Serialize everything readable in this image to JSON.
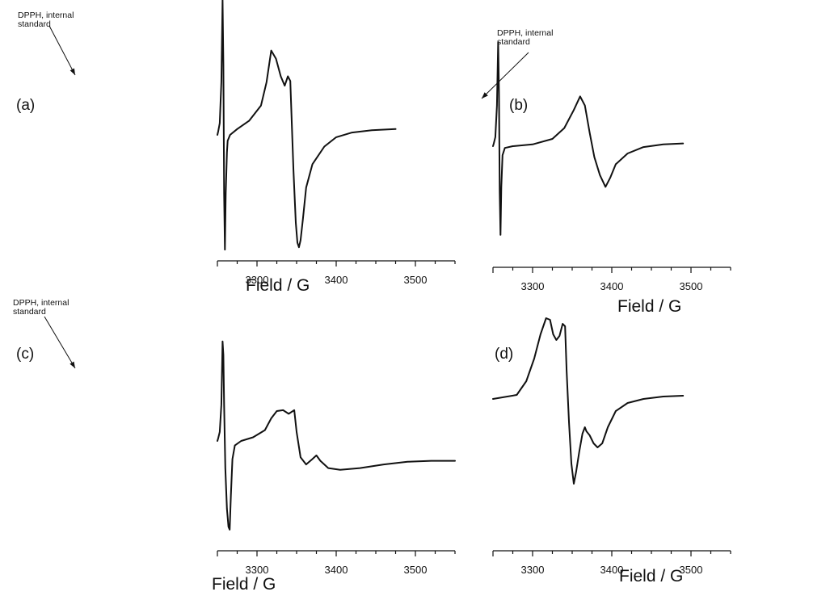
{
  "figure": {
    "panels": [
      {
        "label": "(a)",
        "xlabel": "Field / G",
        "ticks": [
          "3300",
          "3400",
          "3500"
        ],
        "annotation": [
          "DPPH, internal",
          "standard"
        ]
      },
      {
        "label": "(b)",
        "xlabel": "Field / G",
        "ticks": [
          "3300",
          "3400",
          "3500"
        ],
        "annotation": [
          "DPPH, internal",
          "standard"
        ]
      },
      {
        "label": "(c)",
        "xlabel": "Field / G",
        "ticks": [
          "3300",
          "3400",
          "3500"
        ],
        "annotation": [
          "DPPH, internal",
          "standard"
        ]
      },
      {
        "label": "(d)",
        "xlabel": "Field / G",
        "ticks": [
          "3300",
          "3400",
          "3500"
        ],
        "annotation": null
      }
    ]
  },
  "chart_data": [
    {
      "type": "line",
      "panel": "(a)",
      "xlabel": "Field / G",
      "ylabel": "",
      "xlim": [
        3250,
        3550
      ],
      "xticks": [
        3300,
        3400,
        3500
      ],
      "ylim": [
        -1.0,
        1.2
      ],
      "grid": false,
      "annotation": "DPPH, internal standard",
      "series": [
        {
          "x": [
            3250,
            3251,
            3253,
            3255,
            3256.5,
            3257.5,
            3258.5,
            3259.5,
            3260.5,
            3262,
            3263,
            3266,
            3275,
            3290,
            3305,
            3312,
            3318,
            3324,
            3330,
            3335,
            3339,
            3342,
            3346,
            3349,
            3351,
            3353,
            3355,
            3358,
            3362,
            3370,
            3385,
            3400,
            3420,
            3445,
            3475
          ],
          "y": [
            0.0,
            0.03,
            0.1,
            0.45,
            1.15,
            0.6,
            -0.5,
            -0.98,
            -0.5,
            -0.15,
            -0.05,
            0.0,
            0.05,
            0.12,
            0.25,
            0.45,
            0.72,
            0.65,
            0.5,
            0.42,
            0.5,
            0.46,
            -0.3,
            -0.75,
            -0.92,
            -0.96,
            -0.9,
            -0.72,
            -0.45,
            -0.25,
            -0.1,
            -0.02,
            0.02,
            0.04,
            0.05
          ]
        }
      ]
    },
    {
      "type": "line",
      "panel": "(b)",
      "xlabel": "Field / G",
      "ylabel": "",
      "xlim": [
        3250,
        3550
      ],
      "xticks": [
        3300,
        3400,
        3500
      ],
      "ylim": [
        -1.0,
        1.2
      ],
      "grid": false,
      "annotation": "DPPH, internal standard",
      "series": [
        {
          "x": [
            3250,
            3251,
            3253,
            3255,
            3256.5,
            3257.5,
            3258.5,
            3259.5,
            3260.5,
            3262,
            3265,
            3275,
            3300,
            3325,
            3340,
            3352,
            3360,
            3366,
            3372,
            3378,
            3385,
            3392,
            3398,
            3405,
            3420,
            3440,
            3465,
            3490
          ],
          "y": [
            0.0,
            0.03,
            0.1,
            0.45,
            1.15,
            0.6,
            -0.5,
            -0.98,
            -0.45,
            -0.1,
            -0.02,
            0.0,
            0.02,
            0.08,
            0.2,
            0.4,
            0.55,
            0.45,
            0.15,
            -0.12,
            -0.32,
            -0.45,
            -0.35,
            -0.2,
            -0.08,
            -0.01,
            0.02,
            0.03
          ]
        }
      ]
    },
    {
      "type": "line",
      "panel": "(c)",
      "xlabel": "Field / G",
      "ylabel": "",
      "xlim": [
        3250,
        3550
      ],
      "xticks": [
        3300,
        3400,
        3500
      ],
      "ylim": [
        -1.0,
        1.2
      ],
      "grid": false,
      "annotation": "DPPH, internal standard",
      "series": [
        {
          "x": [
            3250,
            3251,
            3253,
            3255,
            3256.5,
            3257.5,
            3258.5,
            3260,
            3262,
            3264,
            3265.5,
            3267,
            3269,
            3272,
            3280,
            3295,
            3310,
            3318,
            3325,
            3333,
            3340,
            3347,
            3350,
            3355,
            3362,
            3370,
            3375,
            3380,
            3390,
            3405,
            3430,
            3460,
            3490,
            3520,
            3550
          ],
          "y": [
            0.0,
            0.03,
            0.1,
            0.4,
            1.1,
            0.95,
            0.4,
            -0.3,
            -0.75,
            -0.95,
            -0.98,
            -0.6,
            -0.2,
            -0.05,
            0.0,
            0.04,
            0.12,
            0.25,
            0.33,
            0.34,
            0.3,
            0.34,
            0.1,
            -0.18,
            -0.26,
            -0.2,
            -0.16,
            -0.22,
            -0.3,
            -0.32,
            -0.3,
            -0.26,
            -0.23,
            -0.22,
            -0.22
          ]
        }
      ]
    },
    {
      "type": "line",
      "panel": "(d)",
      "xlabel": "Field / G",
      "ylabel": "",
      "xlim": [
        3250,
        3550
      ],
      "xticks": [
        3300,
        3400,
        3500
      ],
      "ylim": [
        -1.0,
        1.2
      ],
      "grid": false,
      "series": [
        {
          "x": [
            3250,
            3280,
            3292,
            3302,
            3310,
            3317,
            3322,
            3326,
            3330,
            3334,
            3338,
            3341,
            3343,
            3346,
            3349,
            3352,
            3355,
            3359,
            3363,
            3366,
            3368,
            3372,
            3377,
            3382,
            3388,
            3395,
            3405,
            3420,
            3440,
            3465,
            3490
          ],
          "y": [
            0.1,
            0.15,
            0.32,
            0.6,
            0.9,
            1.1,
            1.08,
            0.9,
            0.83,
            0.88,
            1.03,
            1.0,
            0.45,
            -0.2,
            -0.7,
            -0.95,
            -0.8,
            -0.55,
            -0.33,
            -0.25,
            -0.3,
            -0.35,
            -0.45,
            -0.5,
            -0.45,
            -0.25,
            -0.05,
            0.05,
            0.1,
            0.13,
            0.14
          ]
        }
      ]
    }
  ]
}
